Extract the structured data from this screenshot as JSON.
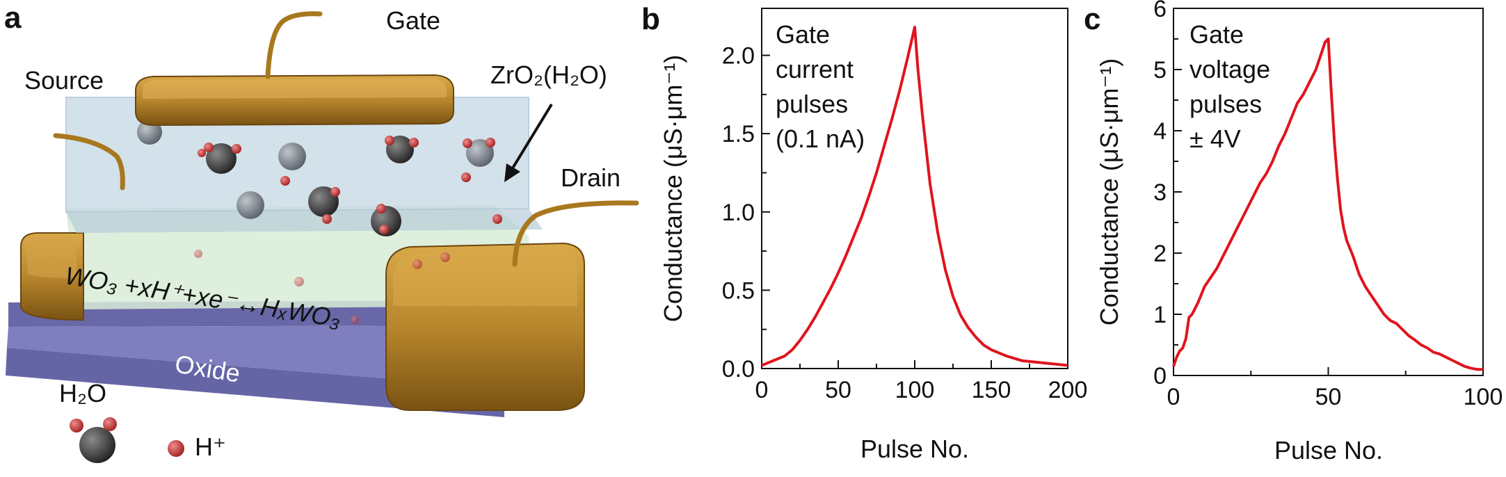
{
  "panel_a": {
    "letter": "a",
    "labels": {
      "gate": "Gate",
      "source": "Source",
      "drain": "Drain",
      "electrolyte": "ZrO₂(H₂O)",
      "substrate": "Oxide",
      "reaction": "WO₃ +xH⁺+xe⁻↔HₓWO₃",
      "water": "H₂O",
      "proton": "H⁺"
    },
    "colors": {
      "gold": "#b8862c",
      "gold_dark": "#7a5313",
      "oxide": "#7f7fbf",
      "electrolyte": "#cfe0ea",
      "channel": "#d8ecd8",
      "oxygen": "#2a2a2a",
      "hydrogen": "#c83a3a"
    }
  },
  "chart_data": [
    {
      "letter": "b",
      "type": "line",
      "title": "",
      "xlabel": "Pulse No.",
      "ylabel": "Conductance (μS·μm⁻¹)",
      "xlim": [
        0,
        200
      ],
      "ylim": [
        0,
        2.3
      ],
      "xticks": [
        0,
        50,
        100,
        150,
        200
      ],
      "yticks": [
        0.0,
        0.5,
        1.0,
        1.5,
        2.0
      ],
      "ytick_labels": [
        "0.0",
        "0.5",
        "1.0",
        "1.5",
        "2.0"
      ],
      "annotation": [
        "Gate",
        "current",
        "pulses",
        "(0.1 nA)"
      ],
      "line_color": "#e0141e",
      "series": [
        {
          "name": "conductance",
          "x": [
            0,
            5,
            10,
            15,
            20,
            25,
            30,
            35,
            40,
            45,
            50,
            55,
            60,
            65,
            70,
            75,
            80,
            85,
            90,
            95,
            100,
            102,
            105,
            110,
            115,
            120,
            125,
            130,
            135,
            140,
            145,
            150,
            160,
            170,
            180,
            190,
            200
          ],
          "y": [
            0.02,
            0.04,
            0.06,
            0.08,
            0.12,
            0.18,
            0.25,
            0.33,
            0.42,
            0.51,
            0.61,
            0.72,
            0.84,
            0.96,
            1.1,
            1.25,
            1.42,
            1.59,
            1.77,
            1.97,
            2.18,
            1.92,
            1.62,
            1.18,
            0.87,
            0.63,
            0.46,
            0.34,
            0.26,
            0.2,
            0.15,
            0.12,
            0.08,
            0.05,
            0.04,
            0.03,
            0.02
          ]
        }
      ]
    },
    {
      "letter": "c",
      "type": "line",
      "title": "",
      "xlabel": "Pulse No.",
      "ylabel": "Conductance (μS·μm⁻¹)",
      "xlim": [
        0,
        100
      ],
      "ylim": [
        0,
        6
      ],
      "xticks": [
        0,
        50,
        100
      ],
      "yticks": [
        0,
        1,
        2,
        3,
        4,
        5,
        6
      ],
      "ytick_labels": [
        "0",
        "1",
        "2",
        "3",
        "4",
        "5",
        "6"
      ],
      "annotation": [
        "Gate",
        "voltage",
        "pulses",
        "± 4V"
      ],
      "line_color": "#e0141e",
      "series": [
        {
          "name": "conductance",
          "x": [
            0,
            1,
            2,
            3,
            4,
            5,
            6,
            7,
            8,
            10,
            12,
            14,
            16,
            18,
            20,
            22,
            24,
            26,
            28,
            30,
            32,
            34,
            36,
            38,
            40,
            42,
            44,
            46,
            48,
            49,
            50,
            51,
            52,
            53,
            54,
            55,
            56,
            58,
            60,
            62,
            64,
            66,
            68,
            70,
            72,
            74,
            76,
            78,
            80,
            82,
            84,
            86,
            88,
            90,
            92,
            94,
            96,
            98,
            100
          ],
          "y": [
            0.15,
            0.3,
            0.4,
            0.45,
            0.6,
            0.95,
            1.0,
            1.1,
            1.2,
            1.45,
            1.6,
            1.75,
            1.95,
            2.15,
            2.35,
            2.55,
            2.75,
            2.95,
            3.15,
            3.3,
            3.5,
            3.75,
            3.95,
            4.2,
            4.45,
            4.6,
            4.8,
            5.0,
            5.3,
            5.45,
            5.5,
            4.6,
            3.8,
            3.2,
            2.7,
            2.4,
            2.2,
            1.95,
            1.65,
            1.45,
            1.3,
            1.15,
            1.0,
            0.9,
            0.85,
            0.75,
            0.65,
            0.58,
            0.5,
            0.45,
            0.38,
            0.35,
            0.3,
            0.25,
            0.2,
            0.15,
            0.12,
            0.1,
            0.1
          ]
        }
      ]
    }
  ]
}
